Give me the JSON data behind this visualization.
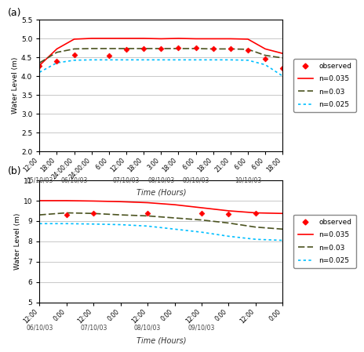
{
  "panel_a": {
    "ylabel": "Water Level (m)",
    "xlabel": "Time (Hours)",
    "ylim": [
      2.0,
      5.5
    ],
    "yticks": [
      2.0,
      2.5,
      3.0,
      3.5,
      4.0,
      4.5,
      5.0,
      5.5
    ],
    "x_tick_labels": [
      "12:00",
      "18:00",
      "24:00:00",
      "24:00:00",
      "6:00",
      "12:00",
      "18:00",
      "3:00",
      "18:00",
      "6:00",
      "18:00",
      "21:00",
      "6:00",
      "6:00",
      "18:00"
    ],
    "date_positions": [
      0,
      2,
      5,
      7,
      9,
      12
    ],
    "date_labels": [
      "05/10/03",
      "06/10/03",
      "07/10/03",
      "08/10/03",
      "09/10/03",
      "10/10/03"
    ],
    "n035_y": [
      4.28,
      4.72,
      4.98,
      5.0,
      5.0,
      5.0,
      5.0,
      4.99,
      5.0,
      4.99,
      4.99,
      4.99,
      4.98,
      4.72,
      4.6
    ],
    "n03_y": [
      4.35,
      4.63,
      4.72,
      4.73,
      4.73,
      4.73,
      4.73,
      4.73,
      4.73,
      4.73,
      4.72,
      4.72,
      4.71,
      4.55,
      4.48
    ],
    "n025_y": [
      4.1,
      4.35,
      4.42,
      4.43,
      4.43,
      4.43,
      4.43,
      4.43,
      4.43,
      4.43,
      4.43,
      4.43,
      4.42,
      4.3,
      4.0
    ],
    "obs_x": [
      0,
      1,
      2,
      4,
      5,
      6,
      7,
      8,
      9,
      10,
      11,
      12,
      13,
      14
    ],
    "obs_y": [
      4.27,
      4.39,
      4.57,
      4.55,
      4.7,
      4.73,
      4.73,
      4.74,
      4.74,
      4.73,
      4.72,
      4.68,
      4.45,
      4.2
    ]
  },
  "panel_b": {
    "ylabel": "Water Level (m)",
    "xlabel": "Time (Hours)",
    "ylim": [
      5.0,
      11.0
    ],
    "yticks": [
      5.0,
      6.0,
      7.0,
      8.0,
      9.0,
      10.0,
      11.0
    ],
    "x_tick_labels": [
      "12:00",
      "0:00",
      "12:00",
      "0:00",
      "12:00",
      "0:00",
      "12:00",
      "0:00",
      "12:00",
      "0:00"
    ],
    "date_positions": [
      0,
      2,
      4,
      6,
      9
    ],
    "date_labels": [
      "06/10/03",
      "07/10/03",
      "08/10/03",
      "09/10/03",
      ""
    ],
    "n035_y": [
      10.0,
      10.0,
      9.98,
      9.95,
      9.9,
      9.8,
      9.65,
      9.5,
      9.4,
      9.37
    ],
    "n03_y": [
      9.3,
      9.4,
      9.37,
      9.3,
      9.25,
      9.15,
      9.05,
      8.9,
      8.7,
      8.6
    ],
    "n025_y": [
      8.87,
      8.87,
      8.85,
      8.82,
      8.75,
      8.6,
      8.45,
      8.25,
      8.1,
      8.05
    ],
    "obs_x": [
      1,
      2,
      4,
      6,
      7,
      8
    ],
    "obs_y": [
      9.3,
      9.38,
      9.37,
      9.37,
      9.33,
      9.37
    ]
  },
  "colors": {
    "n035": "#FF0000",
    "n03": "#4B5320",
    "n025": "#00BFFF",
    "obs": "#FF0000"
  },
  "label_a": "(a)",
  "label_b": "(b)"
}
